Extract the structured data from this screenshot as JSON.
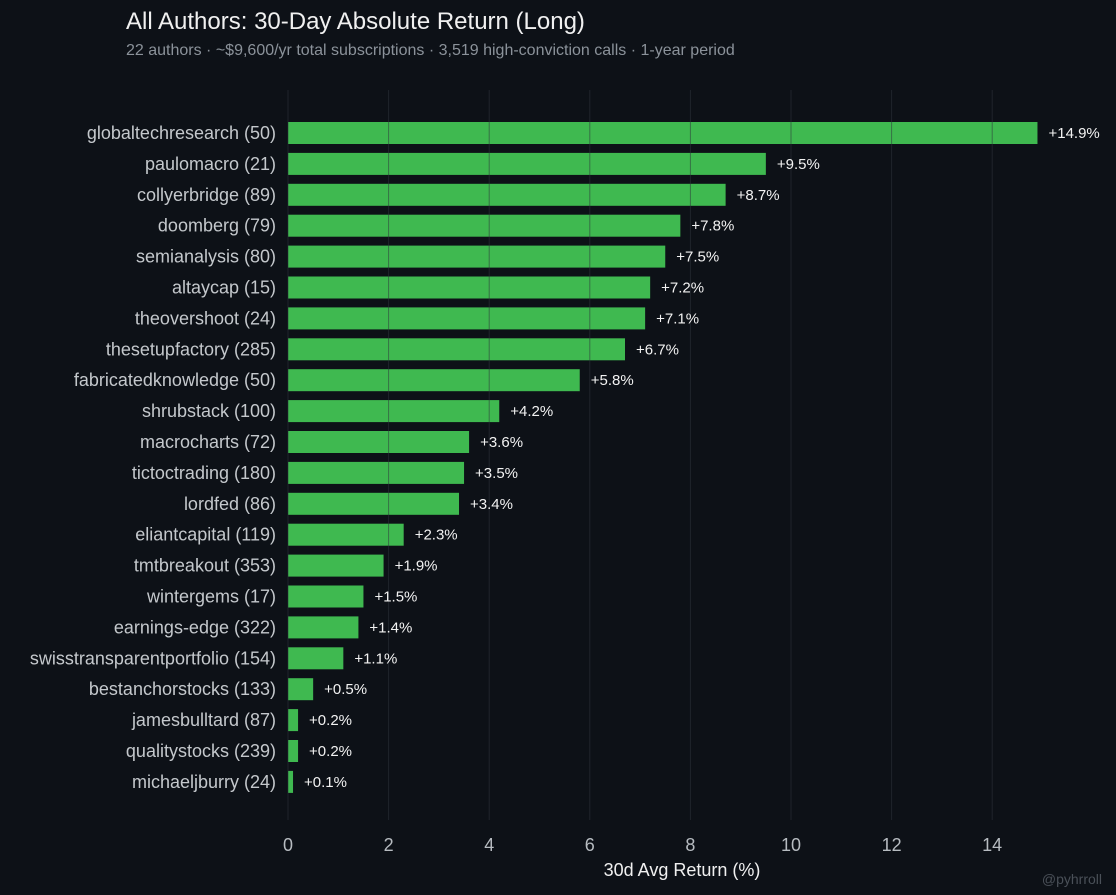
{
  "colors": {
    "background": "#0d1117",
    "bar": "#3fb950",
    "grid": "#2f353d"
  },
  "chart_data": {
    "type": "bar",
    "orientation": "horizontal",
    "title": "All Authors: 30-Day Absolute Return (Long)",
    "subtitle": "22 authors · ~$9,600/yr total subscriptions · 3,519 high-conviction calls · 1-year period",
    "xlabel": "30d Avg Return (%)",
    "ylabel": "",
    "xlim": [
      0,
      15.6
    ],
    "xticks": [
      0,
      2,
      4,
      6,
      8,
      10,
      12,
      14
    ],
    "grid": true,
    "categories": [
      "globaltechresearch  (50)",
      "paulomacro  (21)",
      "collyerbridge  (89)",
      "doomberg  (79)",
      "semianalysis  (80)",
      "altaycap  (15)",
      "theovershoot  (24)",
      "thesetupfactory  (285)",
      "fabricatedknowledge  (50)",
      "shrubstack  (100)",
      "macrocharts  (72)",
      "tictoctrading  (180)",
      "lordfed  (86)",
      "eliantcapital  (119)",
      "tmtbreakout  (353)",
      "wintergems  (17)",
      "earnings-edge  (322)",
      "swisstransparentportfolio  (154)",
      "bestanchorstocks  (133)",
      "jamesbulltard  (87)",
      "qualitystocks  (239)",
      "michaeljburry  (24)"
    ],
    "values": [
      14.9,
      9.5,
      8.7,
      7.8,
      7.5,
      7.2,
      7.1,
      6.7,
      5.8,
      4.2,
      3.6,
      3.5,
      3.4,
      2.3,
      1.9,
      1.5,
      1.4,
      1.1,
      0.5,
      0.2,
      0.2,
      0.1
    ],
    "value_labels": [
      "+14.9%",
      "+9.5%",
      "+8.7%",
      "+7.8%",
      "+7.5%",
      "+7.2%",
      "+7.1%",
      "+6.7%",
      "+5.8%",
      "+4.2%",
      "+3.6%",
      "+3.5%",
      "+3.4%",
      "+2.3%",
      "+1.9%",
      "+1.5%",
      "+1.4%",
      "+1.1%",
      "+0.5%",
      "+0.2%",
      "+0.2%",
      "+0.1%"
    ]
  },
  "watermark": "@pyhrroll"
}
